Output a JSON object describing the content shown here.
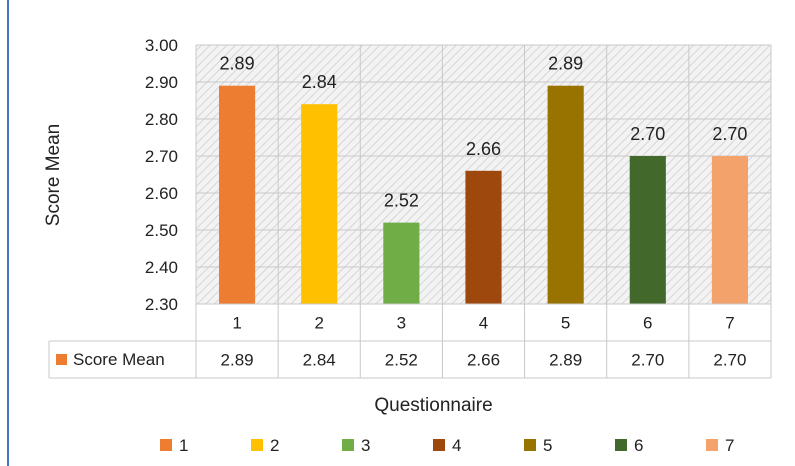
{
  "chart_data": {
    "type": "bar",
    "title": "",
    "xlabel": "Questionnaire",
    "ylabel": "Score Mean",
    "categories": [
      "1",
      "2",
      "3",
      "4",
      "5",
      "6",
      "7"
    ],
    "series": [
      {
        "name": "Score Mean",
        "values": [
          2.89,
          2.84,
          2.52,
          2.66,
          2.89,
          2.7,
          2.7
        ],
        "value_labels": [
          "2.89",
          "2.84",
          "2.52",
          "2.66",
          "2.89",
          "2.70",
          "2.70"
        ]
      }
    ],
    "colors": [
      "#ed7d31",
      "#ffc000",
      "#70ad47",
      "#9e480e",
      "#997300",
      "#43682b",
      "#f4a26b"
    ],
    "ylim": [
      2.3,
      3.0
    ],
    "yticks": [
      "3.00",
      "2.90",
      "2.80",
      "2.70",
      "2.60",
      "2.50",
      "2.40",
      "2.30"
    ],
    "grid": true,
    "data_table": true,
    "legend": {
      "placement": "bottom",
      "entries": [
        "1",
        "2",
        "3",
        "4",
        "5",
        "6",
        "7"
      ]
    }
  }
}
